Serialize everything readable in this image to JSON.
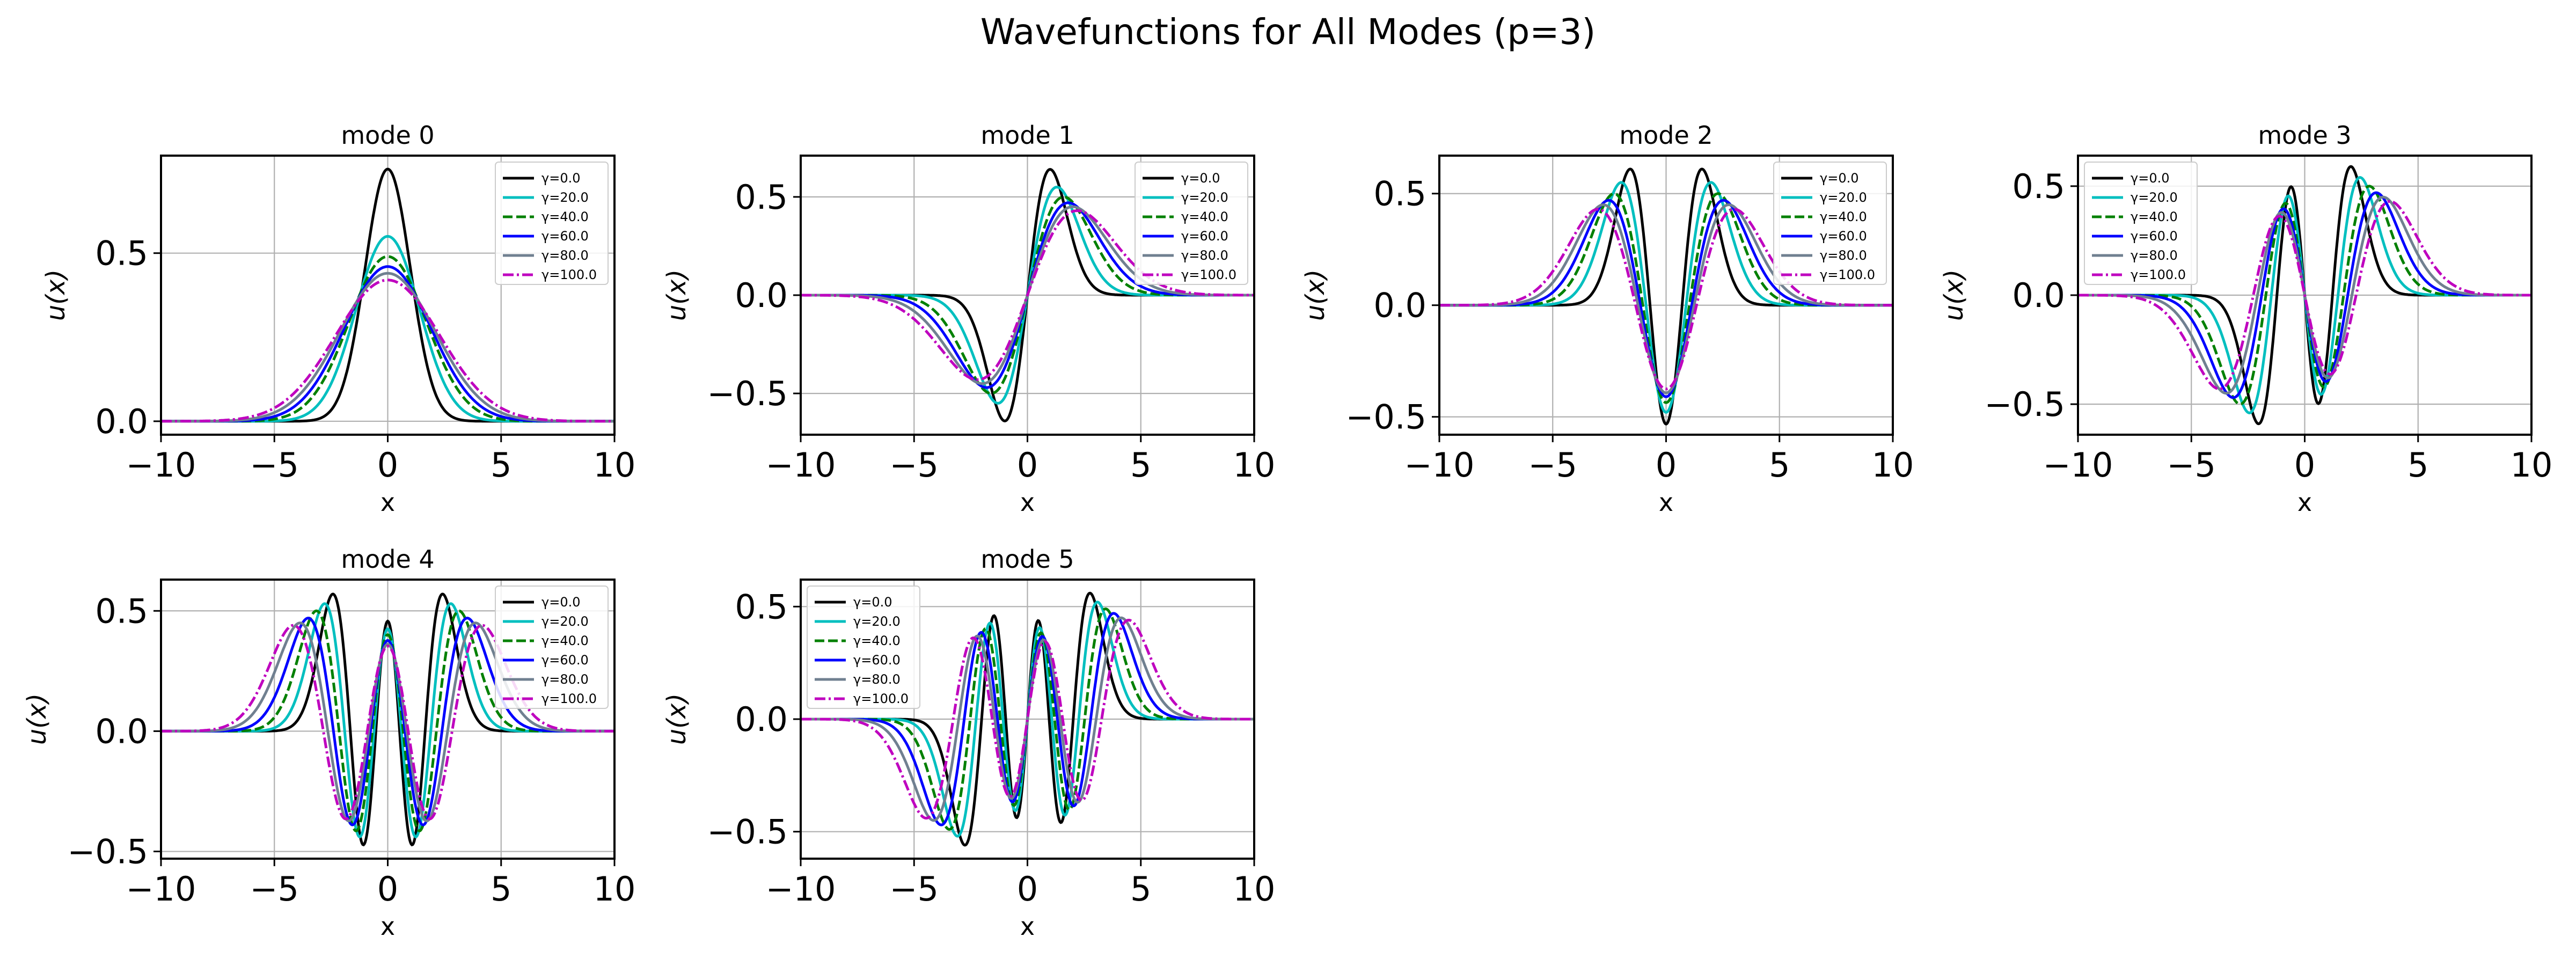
{
  "figure": {
    "suptitle": "Wavefunctions for All Modes (p=3)"
  },
  "legend_labels": [
    "γ=0.0",
    "γ=20.0",
    "γ=40.0",
    "γ=60.0",
    "γ=80.0",
    "γ=100.0"
  ],
  "series_styles": [
    {
      "color": "#000000",
      "dash": ""
    },
    {
      "color": "#00bfbf",
      "dash": ""
    },
    {
      "color": "#008000",
      "dash": "18,7"
    },
    {
      "color": "#0000ff",
      "dash": ""
    },
    {
      "color": "#708090",
      "dash": ""
    },
    {
      "color": "#bf00bf",
      "dash": "20,6,4,6"
    }
  ],
  "chart_data": [
    {
      "type": "line",
      "title": "mode 0",
      "xlabel": "x",
      "ylabel": "u(x)",
      "xlim": [
        -10,
        10
      ],
      "ylim": [
        -0.04,
        0.79
      ],
      "xticks": [
        -10,
        -5,
        0,
        5,
        10
      ],
      "xtick_labels": [
        "−10",
        "−5",
        "0",
        "5",
        "10"
      ],
      "yticks": [
        0.0,
        0.5
      ],
      "ytick_labels": [
        "0.0",
        "0.5"
      ],
      "legend": "upper-right",
      "grid": true,
      "series_peaks": [
        0.75,
        0.55,
        0.49,
        0.46,
        0.44,
        0.42
      ],
      "series_widths": [
        1.0,
        1.4,
        1.7,
        1.9,
        2.1,
        2.3
      ]
    },
    {
      "type": "line",
      "title": "mode 1",
      "xlabel": "x",
      "ylabel": "u(x)",
      "xlim": [
        -10,
        10
      ],
      "ylim": [
        -0.71,
        0.71
      ],
      "xticks": [
        -10,
        -5,
        0,
        5,
        10
      ],
      "xtick_labels": [
        "−10",
        "−5",
        "0",
        "5",
        "10"
      ],
      "yticks": [
        -0.5,
        0.0,
        0.5
      ],
      "ytick_labels": [
        "−0.5",
        "0.0",
        "0.5"
      ],
      "legend": "upper-right",
      "grid": true,
      "series_peaks": [
        0.64,
        0.55,
        0.5,
        0.47,
        0.45,
        0.43
      ],
      "series_widths": [
        1.0,
        1.3,
        1.6,
        1.8,
        2.0,
        2.2
      ]
    },
    {
      "type": "line",
      "title": "mode 2",
      "xlabel": "x",
      "ylabel": "u(x)",
      "xlim": [
        -10,
        10
      ],
      "ylim": [
        -0.58,
        0.67
      ],
      "xticks": [
        -10,
        -5,
        0,
        5,
        10
      ],
      "xtick_labels": [
        "−10",
        "−5",
        "0",
        "5",
        "10"
      ],
      "yticks": [
        -0.5,
        0.0,
        0.5
      ],
      "ytick_labels": [
        "−0.5",
        "0.0",
        "0.5"
      ],
      "legend": "upper-right",
      "grid": true,
      "series_peaks": [
        0.61,
        0.55,
        0.5,
        0.47,
        0.45,
        0.43
      ],
      "series_widths": [
        1.0,
        1.25,
        1.45,
        1.6,
        1.75,
        1.9
      ]
    },
    {
      "type": "line",
      "title": "mode 3",
      "xlabel": "x",
      "ylabel": "u(x)",
      "xlim": [
        -10,
        10
      ],
      "ylim": [
        -0.64,
        0.64
      ],
      "xticks": [
        -10,
        -5,
        0,
        5,
        10
      ],
      "xtick_labels": [
        "−10",
        "−5",
        "0",
        "5",
        "10"
      ],
      "yticks": [
        -0.5,
        0.0,
        0.5
      ],
      "ytick_labels": [
        "−0.5",
        "0.0",
        "0.5"
      ],
      "legend": "upper-left",
      "grid": true,
      "series_peaks": [
        0.59,
        0.54,
        0.5,
        0.47,
        0.45,
        0.43
      ],
      "series_widths": [
        1.0,
        1.2,
        1.4,
        1.55,
        1.7,
        1.85
      ]
    },
    {
      "type": "line",
      "title": "mode 4",
      "xlabel": "x",
      "ylabel": "u(x)",
      "xlim": [
        -10,
        10
      ],
      "ylim": [
        -0.53,
        0.63
      ],
      "xticks": [
        -10,
        -5,
        0,
        5,
        10
      ],
      "xtick_labels": [
        "−10",
        "−5",
        "0",
        "5",
        "10"
      ],
      "yticks": [
        -0.5,
        0.0,
        0.5
      ],
      "ytick_labels": [
        "−0.5",
        "0.0",
        "0.5"
      ],
      "legend": "upper-right",
      "grid": true,
      "series_peaks": [
        0.57,
        0.53,
        0.5,
        0.47,
        0.45,
        0.44
      ],
      "series_widths": [
        1.0,
        1.15,
        1.3,
        1.45,
        1.6,
        1.72
      ]
    },
    {
      "type": "line",
      "title": "mode 5",
      "xlabel": "x",
      "ylabel": "u(x)",
      "xlim": [
        -10,
        10
      ],
      "ylim": [
        -0.62,
        0.62
      ],
      "xticks": [
        -10,
        -5,
        0,
        5,
        10
      ],
      "xtick_labels": [
        "−10",
        "−5",
        "0",
        "5",
        "10"
      ],
      "yticks": [
        -0.5,
        0.0,
        0.5
      ],
      "ytick_labels": [
        "−0.5",
        "0.0",
        "0.5"
      ],
      "legend": "upper-left",
      "grid": true,
      "series_peaks": [
        0.56,
        0.52,
        0.49,
        0.47,
        0.45,
        0.44
      ],
      "series_widths": [
        1.0,
        1.12,
        1.25,
        1.38,
        1.5,
        1.62
      ]
    }
  ]
}
